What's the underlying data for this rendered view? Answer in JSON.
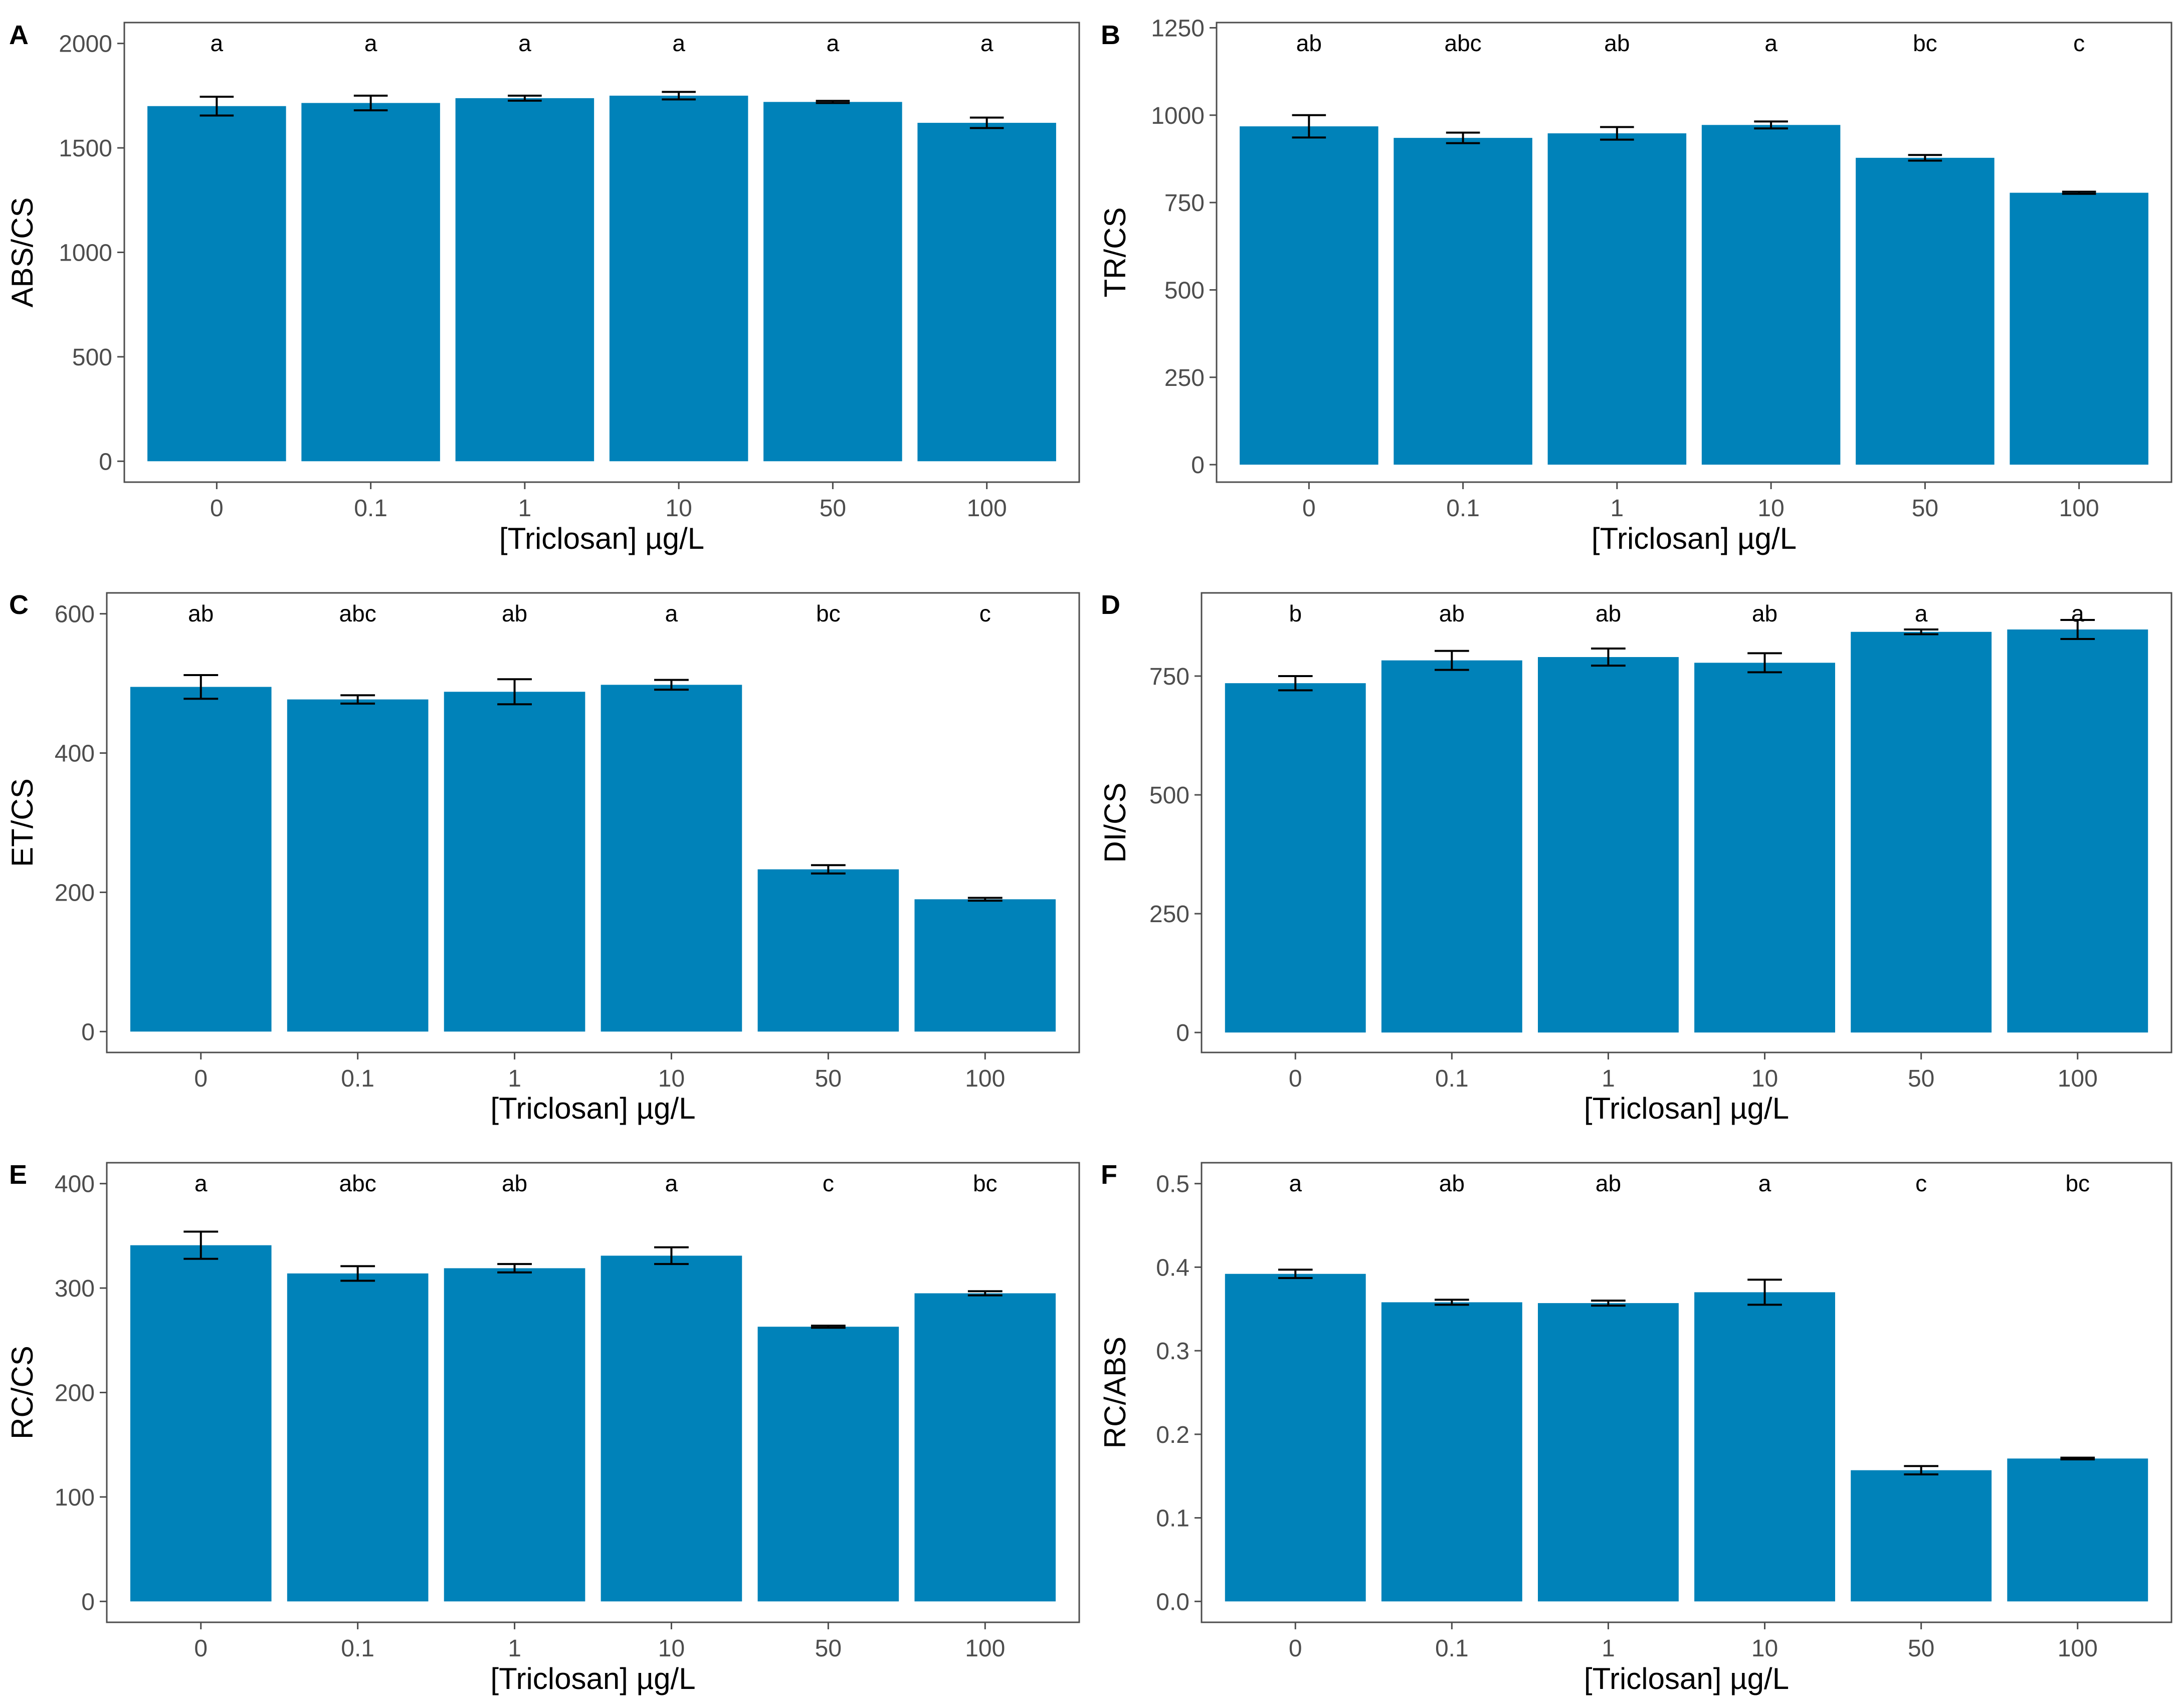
{
  "chart_data": [
    {
      "panel": "A",
      "type": "bar",
      "categories": [
        "0",
        "0.1",
        "1",
        "10",
        "50",
        "100"
      ],
      "values": [
        1700,
        1715,
        1738,
        1750,
        1720,
        1620
      ],
      "errors": [
        45,
        35,
        12,
        18,
        5,
        25
      ],
      "significance": [
        "a",
        "a",
        "a",
        "a",
        "a",
        "a"
      ],
      "xlabel": "[Triclosan] µg/L",
      "ylabel": "ABS/CS",
      "ylim": [
        -100,
        2100
      ],
      "yticks": [
        0,
        500,
        1000,
        1500,
        2000
      ],
      "yticklabels": [
        "0",
        "500",
        "1000",
        "1500",
        "2000"
      ]
    },
    {
      "panel": "B",
      "type": "bar",
      "categories": [
        "0",
        "0.1",
        "1",
        "10",
        "50",
        "100"
      ],
      "values": [
        968,
        935,
        948,
        972,
        878,
        778
      ],
      "errors": [
        32,
        15,
        18,
        10,
        8,
        3
      ],
      "significance": [
        "ab",
        "abc",
        "ab",
        "a",
        "bc",
        "c"
      ],
      "xlabel": "[Triclosan] µg/L",
      "ylabel": "TR/CS",
      "ylim": [
        -50,
        1265
      ],
      "yticks": [
        0,
        250,
        500,
        750,
        1000,
        1250
      ],
      "yticklabels": [
        "0",
        "250",
        "500",
        "750",
        "1000",
        "1250"
      ]
    },
    {
      "panel": "C",
      "type": "bar",
      "categories": [
        "0",
        "0.1",
        "1",
        "10",
        "50",
        "100"
      ],
      "values": [
        495,
        477,
        488,
        498,
        233,
        190
      ],
      "errors": [
        17,
        6,
        18,
        7,
        6,
        2
      ],
      "significance": [
        "ab",
        "abc",
        "ab",
        "a",
        "bc",
        "c"
      ],
      "xlabel": "[Triclosan] µg/L",
      "ylabel": "ET/CS",
      "ylim": [
        -30,
        630
      ],
      "yticks": [
        0,
        200,
        400,
        600
      ],
      "yticklabels": [
        "0",
        "200",
        "400",
        "600"
      ]
    },
    {
      "panel": "D",
      "type": "bar",
      "categories": [
        "0",
        "0.1",
        "1",
        "10",
        "50",
        "100"
      ],
      "values": [
        735,
        783,
        790,
        778,
        843,
        848
      ],
      "errors": [
        15,
        20,
        18,
        20,
        5,
        20
      ],
      "significance": [
        "b",
        "ab",
        "ab",
        "ab",
        "a",
        "a"
      ],
      "xlabel": "[Triclosan] µg/L",
      "ylabel": "DI/CS",
      "ylim": [
        -42,
        925
      ],
      "yticks": [
        0,
        250,
        500,
        750
      ],
      "yticklabels": [
        "0",
        "250",
        "500",
        "750"
      ]
    },
    {
      "panel": "E",
      "type": "bar",
      "categories": [
        "0",
        "0.1",
        "1",
        "10",
        "50",
        "100"
      ],
      "values": [
        341,
        314,
        319,
        331,
        263,
        295
      ],
      "errors": [
        13,
        7,
        4,
        8,
        1,
        2
      ],
      "significance": [
        "a",
        "abc",
        "ab",
        "a",
        "c",
        "bc"
      ],
      "xlabel": "[Triclosan] µg/L",
      "ylabel": "RC/CS",
      "ylim": [
        -20,
        420
      ],
      "yticks": [
        0,
        100,
        200,
        300,
        400
      ],
      "yticklabels": [
        "0",
        "100",
        "200",
        "300",
        "400"
      ]
    },
    {
      "panel": "F",
      "type": "bar",
      "categories": [
        "0",
        "0.1",
        "1",
        "10",
        "50",
        "100"
      ],
      "values": [
        0.392,
        0.358,
        0.357,
        0.37,
        0.157,
        0.171
      ],
      "errors": [
        0.005,
        0.003,
        0.003,
        0.015,
        0.005,
        0.001
      ],
      "significance": [
        "a",
        "ab",
        "ab",
        "a",
        "c",
        "bc"
      ],
      "xlabel": "[Triclosan] µg/L",
      "ylabel": "RC/ABS",
      "ylim": [
        -0.025,
        0.525
      ],
      "yticks": [
        0,
        0.1,
        0.2,
        0.3,
        0.4,
        0.5
      ],
      "yticklabels": [
        "0.0",
        "0.1",
        "0.2",
        "0.3",
        "0.4",
        "0.5"
      ]
    }
  ]
}
